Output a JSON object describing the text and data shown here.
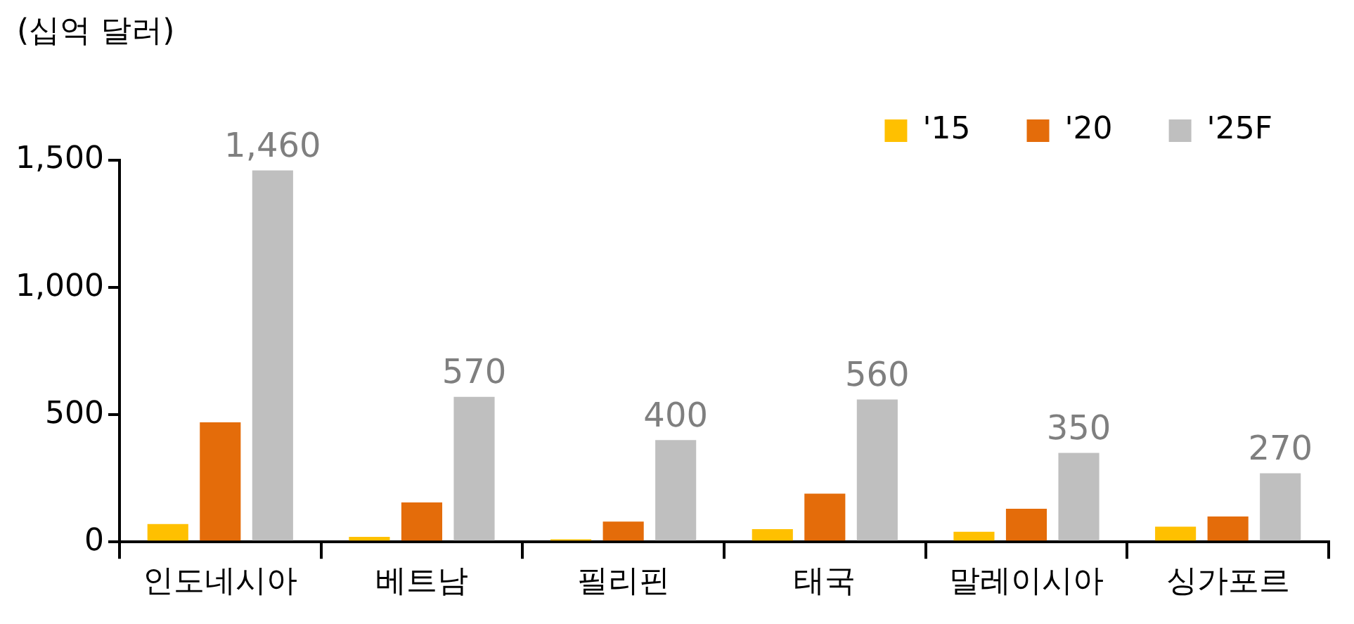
{
  "chart_data": {
    "type": "bar",
    "ylabel": "(십억 달러)",
    "categories": [
      "인도네시아",
      "베트남",
      "필리핀",
      "태국",
      "말레이시아",
      "싱가포르"
    ],
    "series": [
      {
        "name": "'15",
        "color": "#ffc000",
        "values": [
          70,
          20,
          10,
          50,
          40,
          60
        ]
      },
      {
        "name": "'20",
        "color": "#e46c0a",
        "values": [
          470,
          155,
          80,
          190,
          130,
          100
        ]
      },
      {
        "name": "'25F",
        "color": "#bfbfbf",
        "values": [
          1460,
          570,
          400,
          560,
          350,
          270
        ],
        "value_labels": [
          "1,460",
          "570",
          "400",
          "560",
          "350",
          "270"
        ]
      }
    ],
    "ylim": [
      0,
      1500
    ],
    "yticks": [
      0,
      {
        "value": 500,
        "label": "500"
      },
      {
        "value": 1000,
        "label": "1,000"
      },
      {
        "value": 1500,
        "label": "1,500"
      }
    ],
    "grid": false,
    "legend": "top right"
  }
}
